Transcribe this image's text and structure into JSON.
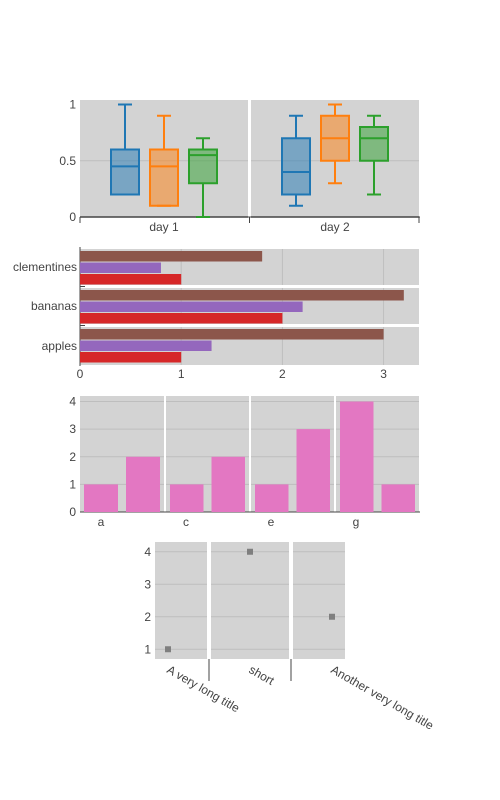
{
  "chart_data": [
    {
      "type": "box",
      "categories": [
        "day 1",
        "day 2"
      ],
      "y_ticks": [
        "0",
        "0.5",
        "1"
      ],
      "ylim": [
        0,
        1.04
      ],
      "series": [
        {
          "color": "#1f77b4",
          "boxes": [
            {
              "min": 0.2,
              "q1": 0.2,
              "median": 0.45,
              "q3": 0.6,
              "max": 1.0
            },
            {
              "min": 0.1,
              "q1": 0.2,
              "median": 0.4,
              "q3": 0.7,
              "max": 0.9
            }
          ]
        },
        {
          "color": "#ff7f0e",
          "boxes": [
            {
              "min": 0.1,
              "q1": 0.1,
              "median": 0.45,
              "q3": 0.6,
              "max": 0.9
            },
            {
              "min": 0.3,
              "q1": 0.5,
              "median": 0.7,
              "q3": 0.9,
              "max": 1.0
            }
          ]
        },
        {
          "color": "#2ca02c",
          "boxes": [
            {
              "min": 0.0,
              "q1": 0.3,
              "median": 0.55,
              "q3": 0.6,
              "max": 0.7
            },
            {
              "min": 0.2,
              "q1": 0.5,
              "median": 0.7,
              "q3": 0.8,
              "max": 0.9
            }
          ]
        }
      ],
      "grid": true
    },
    {
      "type": "bar",
      "orientation": "horizontal",
      "categories": [
        "apples",
        "bananas",
        "clementines"
      ],
      "x_ticks": [
        "0",
        "1",
        "2",
        "3"
      ],
      "xlim": [
        0,
        3.35
      ],
      "series": [
        {
          "color": "#d62728",
          "values": [
            1,
            2,
            1
          ]
        },
        {
          "color": "#9467bd",
          "values": [
            1.3,
            2.2,
            0.8
          ]
        },
        {
          "color": "#8c564b",
          "values": [
            3,
            3.2,
            1.8
          ]
        }
      ],
      "grid": true
    },
    {
      "type": "bar",
      "tick_labels": [
        "a",
        "c",
        "e",
        "g"
      ],
      "y_ticks": [
        "0",
        "1",
        "2",
        "3",
        "4"
      ],
      "ylim": [
        0,
        4.2
      ],
      "groups": [
        [
          1,
          2
        ],
        [
          1,
          2
        ],
        [
          1,
          3
        ],
        [
          4,
          1
        ]
      ],
      "color": "#e377c2",
      "grid": true
    },
    {
      "type": "scatter",
      "categories": [
        "A very long title",
        "short",
        "Another very long title"
      ],
      "values": [
        1,
        4,
        2
      ],
      "y_ticks": [
        "1",
        "2",
        "3",
        "4"
      ],
      "ylim": [
        0.7,
        4.3
      ],
      "color": "#7f7f7f",
      "grid": true
    }
  ]
}
